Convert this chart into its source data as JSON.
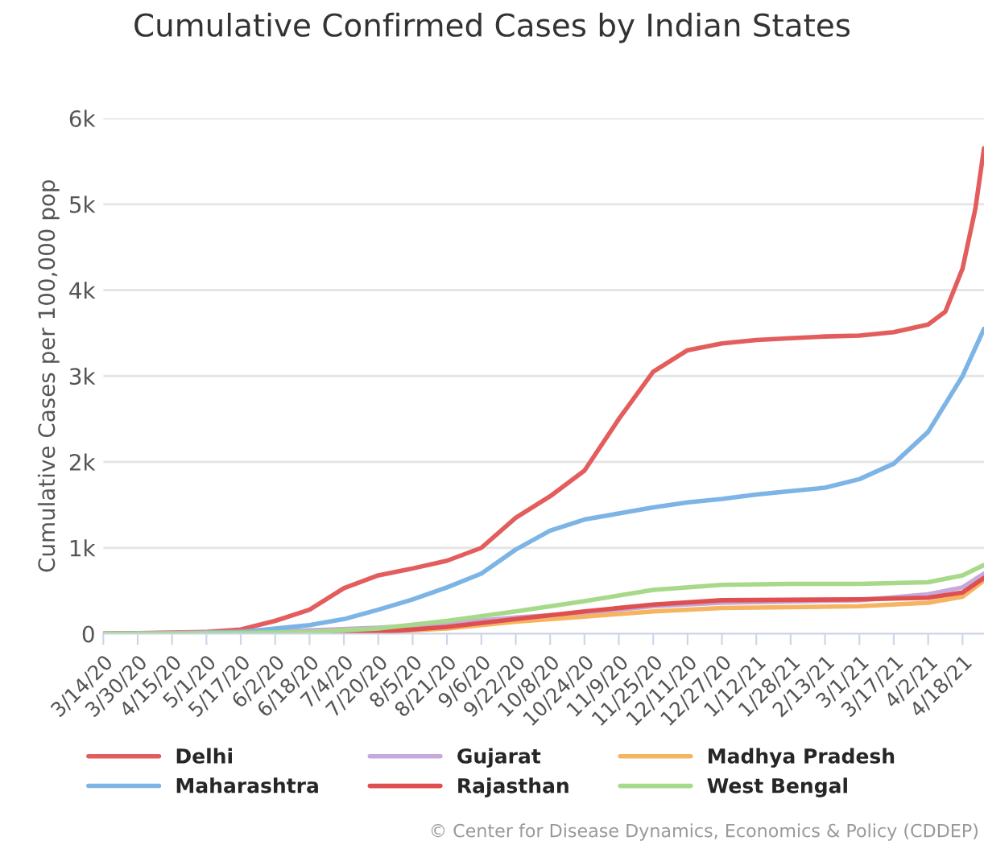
{
  "chart_data": {
    "type": "line",
    "title": "Cumulative Confirmed Cases by Indian States",
    "ylabel": "Cumulative Cases per 100,000 pop",
    "xlim": [
      "2020-03-14",
      "2021-04-28"
    ],
    "xticks": [
      {
        "value": "2020-03-14",
        "label": "3/14/20"
      },
      {
        "value": "2020-03-30",
        "label": "3/30/20"
      },
      {
        "value": "2020-04-15",
        "label": "4/15/20"
      },
      {
        "value": "2020-05-01",
        "label": "5/1/20"
      },
      {
        "value": "2020-05-17",
        "label": "5/17/20"
      },
      {
        "value": "2020-06-02",
        "label": "6/2/20"
      },
      {
        "value": "2020-06-18",
        "label": "6/18/20"
      },
      {
        "value": "2020-07-04",
        "label": "7/4/20"
      },
      {
        "value": "2020-07-20",
        "label": "7/20/20"
      },
      {
        "value": "2020-08-05",
        "label": "8/5/20"
      },
      {
        "value": "2020-08-21",
        "label": "8/21/20"
      },
      {
        "value": "2020-09-06",
        "label": "9/6/20"
      },
      {
        "value": "2020-09-22",
        "label": "9/22/20"
      },
      {
        "value": "2020-10-08",
        "label": "10/8/20"
      },
      {
        "value": "2020-10-24",
        "label": "10/24/20"
      },
      {
        "value": "2020-11-09",
        "label": "11/9/20"
      },
      {
        "value": "2020-11-25",
        "label": "11/25/20"
      },
      {
        "value": "2020-12-11",
        "label": "12/11/20"
      },
      {
        "value": "2020-12-27",
        "label": "12/27/20"
      },
      {
        "value": "2021-01-12",
        "label": "1/12/21"
      },
      {
        "value": "2021-01-28",
        "label": "1/28/21"
      },
      {
        "value": "2021-02-13",
        "label": "2/13/21"
      },
      {
        "value": "2021-03-01",
        "label": "3/1/21"
      },
      {
        "value": "2021-03-17",
        "label": "3/17/21"
      },
      {
        "value": "2021-04-02",
        "label": "4/2/21"
      },
      {
        "value": "2021-04-18",
        "label": "4/18/21"
      }
    ],
    "ylim": [
      0,
      6000
    ],
    "yticks": [
      0,
      {
        "value": 1000,
        "label": "1k"
      },
      {
        "value": 2000,
        "label": "2k"
      },
      {
        "value": 3000,
        "label": "3k"
      },
      {
        "value": 4000,
        "label": "4k"
      },
      {
        "value": 5000,
        "label": "5k"
      },
      {
        "value": 6000,
        "label": "6k"
      }
    ],
    "grid": "y",
    "legend": "bottom",
    "marker": "none",
    "annotations": [
      "© Center for Disease Dynamics, Economics & Policy (CDDEP)"
    ],
    "series": [
      {
        "name": "Delhi",
        "color": "#e35d5d",
        "x": [
          "2020-03-14",
          "2020-05-01",
          "2020-05-17",
          "2020-06-02",
          "2020-06-18",
          "2020-07-04",
          "2020-07-20",
          "2020-08-05",
          "2020-08-21",
          "2020-09-06",
          "2020-09-22",
          "2020-10-08",
          "2020-10-24",
          "2020-11-09",
          "2020-11-25",
          "2020-12-11",
          "2020-12-27",
          "2021-01-12",
          "2021-01-28",
          "2021-02-13",
          "2021-03-01",
          "2021-03-17",
          "2021-04-02",
          "2021-04-10",
          "2021-04-18",
          "2021-04-24",
          "2021-04-28"
        ],
        "values": [
          0,
          20,
          50,
          150,
          280,
          530,
          680,
          760,
          850,
          1000,
          1350,
          1600,
          1900,
          2500,
          3050,
          3300,
          3380,
          3420,
          3440,
          3460,
          3470,
          3510,
          3600,
          3750,
          4250,
          4950,
          5650
        ]
      },
      {
        "name": "Gujarat",
        "color": "#c6a8dc",
        "x": [
          "2020-03-14",
          "2020-05-17",
          "2020-06-18",
          "2020-07-20",
          "2020-08-21",
          "2020-09-22",
          "2020-10-24",
          "2020-11-25",
          "2020-12-27",
          "2021-03-01",
          "2021-04-02",
          "2021-04-18",
          "2021-04-28"
        ],
        "values": [
          0,
          20,
          40,
          70,
          120,
          190,
          240,
          320,
          360,
          390,
          460,
          540,
          700
        ]
      },
      {
        "name": "Madhya Pradesh",
        "color": "#f5b461",
        "x": [
          "2020-03-14",
          "2020-05-17",
          "2020-07-20",
          "2020-08-21",
          "2020-09-22",
          "2020-10-24",
          "2020-11-25",
          "2020-12-27",
          "2021-03-01",
          "2021-04-02",
          "2021-04-18",
          "2021-04-28"
        ],
        "values": [
          0,
          0,
          20,
          60,
          140,
          200,
          260,
          300,
          320,
          360,
          430,
          620
        ]
      },
      {
        "name": "Maharashtra",
        "color": "#7db4e6",
        "x": [
          "2020-03-14",
          "2020-05-01",
          "2020-05-17",
          "2020-06-02",
          "2020-06-18",
          "2020-07-04",
          "2020-07-20",
          "2020-08-05",
          "2020-08-21",
          "2020-09-06",
          "2020-09-22",
          "2020-10-08",
          "2020-10-24",
          "2020-11-09",
          "2020-11-25",
          "2020-12-11",
          "2020-12-27",
          "2021-01-12",
          "2021-01-28",
          "2021-02-13",
          "2021-03-01",
          "2021-03-17",
          "2021-04-02",
          "2021-04-18",
          "2021-04-28"
        ],
        "values": [
          0,
          10,
          20,
          60,
          100,
          170,
          280,
          400,
          540,
          700,
          980,
          1200,
          1330,
          1400,
          1470,
          1530,
          1570,
          1620,
          1660,
          1700,
          1800,
          1980,
          2350,
          3000,
          3550
        ]
      },
      {
        "name": "Rajasthan",
        "color": "#e04f4f",
        "x": [
          "2020-03-14",
          "2020-05-17",
          "2020-07-20",
          "2020-08-21",
          "2020-09-22",
          "2020-10-24",
          "2020-11-25",
          "2020-12-27",
          "2021-03-01",
          "2021-04-02",
          "2021-04-18",
          "2021-04-28"
        ],
        "values": [
          0,
          0,
          20,
          80,
          170,
          260,
          340,
          390,
          400,
          420,
          480,
          650
        ]
      },
      {
        "name": "West Bengal",
        "color": "#a7d98a",
        "x": [
          "2020-03-14",
          "2020-05-17",
          "2020-06-18",
          "2020-07-20",
          "2020-08-21",
          "2020-09-22",
          "2020-10-24",
          "2020-11-25",
          "2020-12-27",
          "2021-01-28",
          "2021-03-01",
          "2021-04-02",
          "2021-04-18",
          "2021-04-28"
        ],
        "values": [
          0,
          10,
          20,
          60,
          150,
          260,
          380,
          510,
          570,
          580,
          580,
          600,
          680,
          800
        ]
      }
    ]
  }
}
